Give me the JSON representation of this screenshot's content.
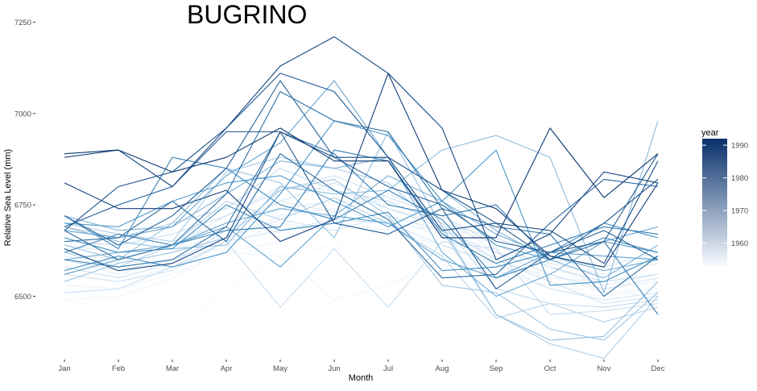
{
  "chart_data": {
    "type": "line",
    "title": "BUGRINO",
    "xlabel": "Month",
    "ylabel": "Relative Sea Level (mm)",
    "categories": [
      "Jan",
      "Feb",
      "Mar",
      "Apr",
      "May",
      "Jun",
      "Jul",
      "Aug",
      "Sep",
      "Oct",
      "Nov",
      "Dec"
    ],
    "ylim": [
      6340,
      7240
    ],
    "yticks": [
      6500,
      6750,
      7000,
      7250
    ],
    "ytick_labels": [
      "6500",
      "6750",
      "7000",
      "7250"
    ],
    "grid": false,
    "legend": {
      "title": "year",
      "placement": "right",
      "type": "colorbar",
      "range": [
        1953,
        1992
      ],
      "ticks": [
        1960,
        1970,
        1980,
        1990
      ],
      "tick_labels": [
        "1960",
        "1970",
        "1980",
        "1990"
      ],
      "color_low": "#f7fbff",
      "color_high": "#08306b"
    },
    "series": [
      {
        "year": 1954,
        "values": [
          null,
          null,
          6400,
          6520,
          6610,
          6640,
          6690,
          6630,
          6560,
          6530,
          6510,
          6500
        ]
      },
      {
        "year": 1955,
        "values": [
          6490,
          6500,
          6550,
          6620,
          6610,
          6490,
          6530,
          6600,
          6580,
          6520,
          6500,
          6520
        ]
      },
      {
        "year": 1956,
        "values": [
          6530,
          6520,
          6560,
          6620,
          6650,
          6700,
          6680,
          6640,
          6580,
          6560,
          6510,
          6520
        ]
      },
      {
        "year": 1957,
        "values": [
          6560,
          6540,
          6580,
          6640,
          6700,
          6680,
          6720,
          6660,
          6620,
          6560,
          6520,
          6540
        ]
      },
      {
        "year": 1958,
        "values": [
          6600,
          6560,
          6600,
          6660,
          6720,
          6740,
          6700,
          6680,
          6600,
          6550,
          6540,
          6560
        ]
      },
      {
        "year": 1959,
        "values": [
          6610,
          6590,
          6620,
          6680,
          6740,
          6760,
          6760,
          6700,
          6640,
          6580,
          6530,
          6560
        ]
      },
      {
        "year": 1960,
        "values": [
          6620,
          6600,
          6650,
          6700,
          6760,
          6730,
          6780,
          6720,
          6620,
          6590,
          6560,
          6590
        ]
      },
      {
        "year": 1961,
        "values": [
          6640,
          6620,
          6640,
          6720,
          6800,
          6790,
          6740,
          6700,
          6660,
          6600,
          6580,
          6620
        ]
      },
      {
        "year": 1962,
        "values": [
          6600,
          6570,
          6600,
          6660,
          6710,
          6680,
          6720,
          6680,
          6620,
          6560,
          6520,
          6550
        ]
      },
      {
        "year": 1963,
        "values": [
          6560,
          6540,
          6570,
          6650,
          6680,
          6710,
          6700,
          6640,
          6590,
          6520,
          6490,
          6510
        ]
      },
      {
        "year": 1964,
        "values": [
          6580,
          6550,
          6590,
          6680,
          6760,
          6810,
          6740,
          6690,
          6600,
          6540,
          6480,
          6500
        ]
      },
      {
        "year": 1965,
        "values": [
          6650,
          6640,
          6670,
          6720,
          6790,
          6830,
          6770,
          6720,
          6640,
          6580,
          6540,
          6560
        ]
      },
      {
        "year": 1966,
        "values": [
          6510,
          6520,
          6580,
          6650,
          6470,
          6630,
          6470,
          6650,
          6630,
          6450,
          6460,
          6480
        ]
      },
      {
        "year": 1967,
        "values": [
          6690,
          6660,
          6700,
          6740,
          6850,
          6790,
          6760,
          6700,
          6520,
          6480,
          6470,
          6490
        ]
      },
      {
        "year": 1968,
        "values": [
          6620,
          6580,
          6640,
          6760,
          6710,
          6770,
          6700,
          6610,
          6440,
          6480,
          6430,
          6470
        ]
      },
      {
        "year": 1969,
        "values": [
          6700,
          6670,
          6650,
          6840,
          6880,
          6850,
          6810,
          6680,
          6450,
          6370,
          6330,
          6500
        ]
      },
      {
        "year": 1970,
        "values": [
          6540,
          6590,
          6620,
          6660,
          6790,
          6820,
          6720,
          6530,
          6510,
          6410,
          6380,
          6510
        ]
      },
      {
        "year": 1971,
        "values": [
          6640,
          6600,
          6700,
          6850,
          6810,
          6660,
          6950,
          6690,
          6450,
          6380,
          6390,
          6540
        ]
      },
      {
        "year": 1972,
        "values": [
          6690,
          6650,
          6630,
          6640,
          6800,
          6780,
          6790,
          6900,
          6940,
          6880,
          6510,
          6980
        ]
      },
      {
        "year": 1973,
        "values": [
          6720,
          6680,
          6690,
          6780,
          6870,
          6850,
          6880,
          6790,
          6680,
          6600,
          6550,
          6640
        ]
      },
      {
        "year": 1974,
        "values": [
          6600,
          6620,
          6640,
          6700,
          6740,
          6720,
          6830,
          6760,
          6670,
          6610,
          6570,
          6600
        ]
      },
      {
        "year": 1975,
        "values": [
          6680,
          6660,
          6690,
          6830,
          6920,
          7090,
          6880,
          6620,
          6500,
          6560,
          6650,
          6690
        ]
      },
      {
        "year": 1976,
        "values": [
          6560,
          6600,
          6640,
          6690,
          6580,
          6720,
          6700,
          6600,
          6550,
          6620,
          6610,
          6600
        ]
      },
      {
        "year": 1977,
        "values": [
          6700,
          6690,
          6760,
          6810,
          6830,
          6760,
          6690,
          6760,
          6640,
          6600,
          6650,
          6620
        ]
      },
      {
        "year": 1978,
        "values": [
          6570,
          6610,
          6580,
          6620,
          6780,
          6980,
          6940,
          6760,
          6900,
          6530,
          6540,
          6610
        ]
      },
      {
        "year": 1979,
        "values": [
          6660,
          6620,
          6630,
          6750,
          6680,
          6700,
          6730,
          6570,
          6580,
          6620,
          6700,
          6660
        ]
      },
      {
        "year": 1980,
        "values": [
          6720,
          6630,
          6880,
          6850,
          6750,
          6710,
          6790,
          6710,
          6550,
          6600,
          6660,
          6620
        ]
      },
      {
        "year": 1981,
        "values": [
          6620,
          6670,
          6640,
          6680,
          6690,
          6900,
          6870,
          6670,
          6590,
          6640,
          6690,
          6670
        ]
      },
      {
        "year": 1982,
        "values": [
          6600,
          6580,
          6600,
          6690,
          6950,
          6890,
          6750,
          6720,
          6750,
          6600,
          6650,
          6450
        ]
      },
      {
        "year": 1983,
        "values": [
          6680,
          6600,
          6640,
          6780,
          7060,
          6980,
          6950,
          6740,
          6690,
          6670,
          6500,
          6610
        ]
      },
      {
        "year": 1984,
        "values": [
          6650,
          6660,
          6760,
          6650,
          6890,
          6790,
          6710,
          6550,
          6560,
          6700,
          6820,
          6800
        ]
      },
      {
        "year": 1985,
        "values": [
          6720,
          6640,
          6720,
          6850,
          7090,
          6880,
          6800,
          6750,
          6650,
          6620,
          6680,
          6600
        ]
      },
      {
        "year": 1986,
        "values": [
          6690,
          6750,
          6800,
          6950,
          6950,
          6700,
          6670,
          6740,
          6520,
          6620,
          6650,
          6890
        ]
      },
      {
        "year": 1987,
        "values": [
          6680,
          6800,
          6840,
          6960,
          7110,
          7060,
          6880,
          6790,
          6700,
          6600,
          6700,
          6820
        ]
      },
      {
        "year": 1988,
        "values": [
          6630,
          6570,
          6590,
          6660,
          6950,
          6880,
          6880,
          6680,
          6700,
          6680,
          6590,
          6870
        ]
      },
      {
        "year": 1989,
        "values": [
          6880,
          6900,
          6800,
          6960,
          7130,
          7210,
          7110,
          6960,
          6600,
          6670,
          6840,
          6810
        ]
      },
      {
        "year": 1990,
        "values": [
          6810,
          6740,
          6740,
          6790,
          6650,
          6710,
          7110,
          6790,
          6740,
          6610,
          6580,
          6810
        ]
      },
      {
        "year": 1991,
        "values": [
          6890,
          6900,
          6840,
          6880,
          6960,
          6870,
          6870,
          6660,
          6660,
          6960,
          6770,
          6890
        ]
      }
    ]
  }
}
